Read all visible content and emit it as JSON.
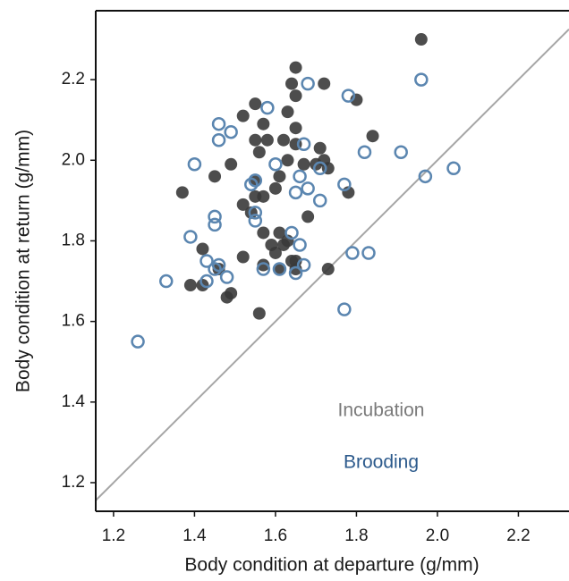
{
  "chart_data": {
    "type": "scatter",
    "xlabel": "Body condition at departure (g/mm)",
    "ylabel": "Body condition at return (g/mm)",
    "xlim": [
      1.156,
      2.325
    ],
    "ylim": [
      1.129,
      2.371
    ],
    "xticks": [
      1.2,
      1.4,
      1.6,
      1.8,
      {
        "value": 2,
        "label": "2.0"
      },
      2.2
    ],
    "yticks": [
      1.2,
      1.4,
      1.6,
      1.8,
      {
        "value": 2,
        "label": "2.0"
      },
      2.2
    ],
    "identity_line": true,
    "identity_line_color": "#a6a6a6",
    "series": [
      {
        "name": "Incubation",
        "color": "#3a3a3a",
        "label_color": "#7a7a7a",
        "filled": true,
        "x": [
          1.96,
          1.65,
          1.64,
          1.72,
          1.65,
          1.8,
          1.55,
          1.52,
          1.63,
          1.57,
          1.65,
          1.84,
          1.55,
          1.58,
          1.62,
          1.65,
          1.45,
          1.49,
          1.37,
          1.56,
          1.63,
          1.71,
          1.7,
          1.72,
          1.73,
          1.67,
          1.61,
          1.6,
          1.57,
          1.55,
          1.52,
          1.54,
          1.55,
          1.68,
          1.78,
          1.57,
          1.61,
          1.63,
          1.62,
          1.59,
          1.6,
          1.42,
          1.46,
          1.52,
          1.57,
          1.61,
          1.65,
          1.65,
          1.73,
          1.39,
          1.42,
          1.48,
          1.49,
          1.56,
          1.64
        ],
        "values": [
          2.3,
          2.23,
          2.19,
          2.19,
          2.16,
          2.15,
          2.14,
          2.11,
          2.12,
          2.09,
          2.08,
          2.06,
          2.05,
          2.05,
          2.05,
          2.04,
          1.96,
          1.99,
          1.92,
          2.02,
          2.0,
          2.03,
          1.99,
          2.0,
          1.98,
          1.99,
          1.96,
          1.93,
          1.91,
          1.91,
          1.89,
          1.87,
          1.95,
          1.86,
          1.92,
          1.82,
          1.82,
          1.8,
          1.79,
          1.79,
          1.77,
          1.78,
          1.73,
          1.76,
          1.74,
          1.73,
          1.73,
          1.75,
          1.73,
          1.69,
          1.69,
          1.66,
          1.67,
          1.62,
          1.75
        ]
      },
      {
        "name": "Brooding",
        "color": "#5b86b0",
        "label_color": "#2c5a8c",
        "filled": false,
        "x": [
          1.96,
          1.68,
          1.78,
          1.58,
          1.46,
          1.49,
          1.46,
          1.67,
          1.4,
          1.6,
          1.71,
          1.82,
          1.91,
          2.04,
          1.97,
          1.66,
          1.55,
          1.54,
          1.68,
          1.77,
          1.65,
          1.71,
          1.55,
          1.55,
          1.45,
          1.45,
          1.39,
          1.64,
          1.66,
          1.43,
          1.46,
          1.57,
          1.61,
          1.67,
          1.65,
          1.48,
          1.43,
          1.33,
          1.79,
          1.83,
          1.77,
          1.26,
          1.45
        ],
        "values": [
          2.2,
          2.19,
          2.16,
          2.13,
          2.09,
          2.07,
          2.05,
          2.04,
          1.99,
          1.99,
          1.98,
          2.02,
          2.02,
          1.98,
          1.96,
          1.96,
          1.95,
          1.94,
          1.93,
          1.94,
          1.92,
          1.9,
          1.87,
          1.85,
          1.86,
          1.84,
          1.81,
          1.82,
          1.79,
          1.75,
          1.74,
          1.73,
          1.73,
          1.74,
          1.72,
          1.71,
          1.7,
          1.7,
          1.77,
          1.77,
          1.63,
          1.55,
          1.73
        ]
      }
    ]
  }
}
